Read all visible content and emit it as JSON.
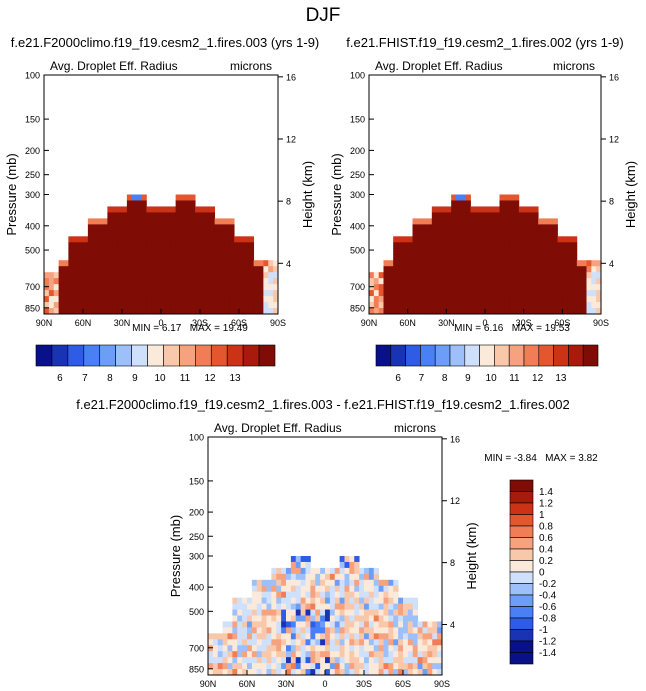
{
  "page_title": "DJF",
  "chart_data": [
    {
      "type": "heatmap",
      "title": "f.e21.F2000climo.f19_f19.cesm2_1.fires.003 (yrs 1-9)",
      "subtitle_left": "Avg. Droplet Eff. Radius",
      "subtitle_right": "microns",
      "ylabel": "Pressure (mb)",
      "ylabel_right": "Height (km)",
      "x_ticks": [
        "90N",
        "60N",
        "30N",
        "0",
        "30S",
        "60S",
        "90S"
      ],
      "y_ticks": [
        "100",
        "150",
        "200",
        "250",
        "300",
        "400",
        "500",
        "700",
        "850"
      ],
      "y_ticks_right": [
        "16",
        "12",
        "8",
        "4"
      ],
      "ylim": [
        1000,
        100
      ],
      "stats": {
        "min_label": "MIN =",
        "min": "6.17",
        "max_label": "MAX =",
        "max": "19.49"
      },
      "colorbar": {
        "labels": [
          "6",
          "7",
          "8",
          "9",
          "10",
          "11",
          "12",
          "13"
        ]
      }
    },
    {
      "type": "heatmap",
      "title": "f.e21.FHIST.f19_f19.cesm2_1.fires.002 (yrs 1-9)",
      "subtitle_left": "Avg. Droplet Eff. Radius",
      "subtitle_right": "microns",
      "ylabel": "Pressure (mb)",
      "ylabel_right": "Height (km)",
      "x_ticks": [
        "90N",
        "60N",
        "30N",
        "0",
        "30S",
        "60S",
        "90S"
      ],
      "y_ticks": [
        "100",
        "150",
        "200",
        "250",
        "300",
        "400",
        "500",
        "700",
        "850"
      ],
      "y_ticks_right": [
        "16",
        "12",
        "8",
        "4"
      ],
      "ylim": [
        1000,
        100
      ],
      "stats": {
        "min_label": "MIN =",
        "min": "6.16",
        "max_label": "MAX =",
        "max": "19.53"
      },
      "colorbar": {
        "labels": [
          "6",
          "7",
          "8",
          "9",
          "10",
          "11",
          "12",
          "13"
        ]
      }
    },
    {
      "type": "heatmap",
      "title": "f.e21.F2000climo.f19_f19.cesm2_1.fires.003 - f.e21.FHIST.f19_f19.cesm2_1.fires.002",
      "subtitle_left": "Avg. Droplet Eff. Radius",
      "subtitle_right": "microns",
      "ylabel": "Pressure (mb)",
      "ylabel_right": "Height (km)",
      "x_ticks": [
        "90N",
        "60N",
        "30N",
        "0",
        "30S",
        "60S",
        "90S"
      ],
      "y_ticks": [
        "100",
        "150",
        "200",
        "250",
        "300",
        "400",
        "500",
        "700",
        "850"
      ],
      "y_ticks_right": [
        "16",
        "12",
        "8",
        "4"
      ],
      "ylim": [
        1000,
        100
      ],
      "stats": {
        "min_label": "MIN =",
        "min": "-3.84",
        "max_label": "MAX =",
        "max": "3.82"
      },
      "colorbar": {
        "labels": [
          "1.4",
          "1.2",
          "1",
          "0.8",
          "0.6",
          "0.4",
          "0.2",
          "0",
          "-0.2",
          "-0.4",
          "-0.6",
          "-0.8",
          "-1",
          "-1.2",
          "-1.4"
        ]
      }
    }
  ],
  "colors": {
    "seq": [
      "#08108a",
      "#1933b5",
      "#2e5ce6",
      "#4a80f5",
      "#6d9ef7",
      "#9ec0fa",
      "#cfe0fc",
      "#fbe9d9",
      "#f9c7aa",
      "#f6a27e",
      "#f07d55",
      "#e4562d",
      "#cc3316",
      "#a81b0c",
      "#7f0c05"
    ],
    "div": [
      "#7f0c05",
      "#a81b0c",
      "#cc3316",
      "#e4562d",
      "#f07d55",
      "#f6a27e",
      "#f9c7aa",
      "#fbe9d9",
      "#cfe0fc",
      "#9ec0fa",
      "#6d9ef7",
      "#4a80f5",
      "#2e5ce6",
      "#1933b5",
      "#08108a"
    ]
  }
}
